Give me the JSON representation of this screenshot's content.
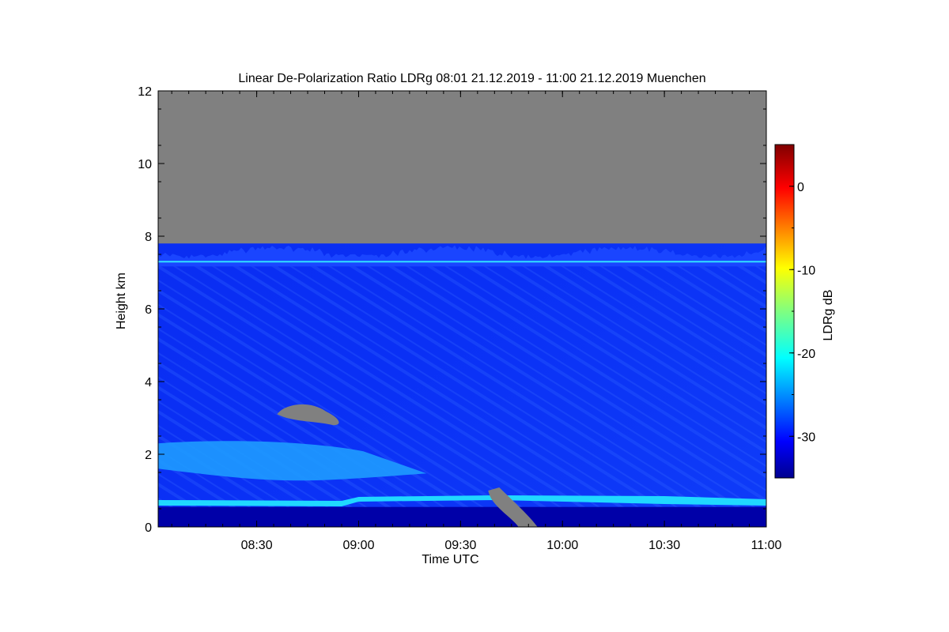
{
  "chart_data": {
    "type": "heatmap",
    "title": "Linear De-Polarization Ratio LDRg   08:01 21.12.2019 - 11:00 21.12.2019 Muenchen",
    "xlabel": "Time UTC",
    "ylabel": "Height km",
    "x_range": [
      "08:01",
      "11:00"
    ],
    "x_ticks": [
      "08:30",
      "09:00",
      "09:30",
      "10:00",
      "10:30",
      "11:00"
    ],
    "y_range": [
      0,
      12
    ],
    "y_ticks": [
      "0",
      "2",
      "4",
      "6",
      "8",
      "10",
      "12"
    ],
    "missing_data_color": "#808080",
    "colorbar": {
      "label": "LDRg dB",
      "range": [
        -35,
        5
      ],
      "ticks": [
        "0",
        "-10",
        "-20",
        "-30"
      ],
      "colormap": "jet"
    },
    "features": [
      {
        "kind": "signal-top",
        "height_km": [
          7.3,
          7.8
        ],
        "ldr_db": -31
      },
      {
        "kind": "horizontal-line",
        "height_km": 7.3,
        "ldr_db": -22
      },
      {
        "kind": "liquid-layer",
        "height_km": [
          0.55,
          0.8
        ],
        "ldr_db": -22
      },
      {
        "kind": "enhanced-layer",
        "time": [
          "08:01",
          "09:20"
        ],
        "height_km": [
          1.3,
          2.3
        ],
        "ldr_db": -25
      },
      {
        "kind": "no-data-patch",
        "time": [
          "08:36",
          "08:55"
        ],
        "height_km": [
          2.8,
          3.4
        ]
      },
      {
        "kind": "no-data-patch",
        "time": [
          "09:40",
          "09:48"
        ],
        "height_km": [
          0.0,
          1.0
        ]
      }
    ]
  }
}
